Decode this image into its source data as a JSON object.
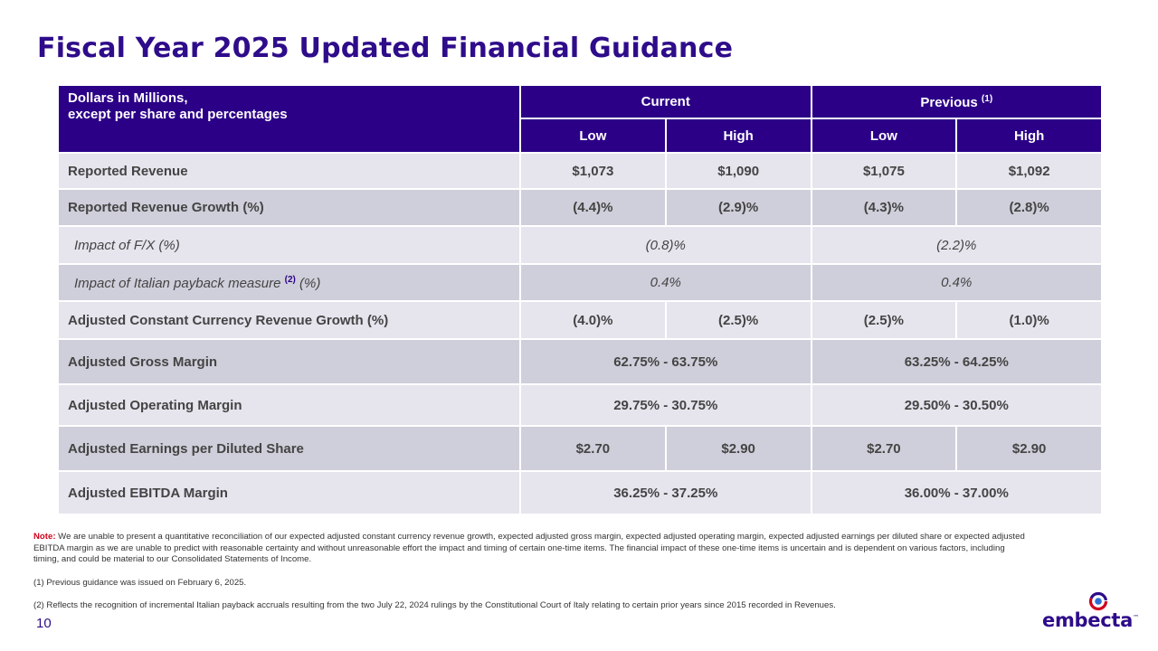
{
  "page": {
    "title": "Fiscal Year 2025 Updated Financial Guidance",
    "page_number": "10"
  },
  "table": {
    "corner_line1": "Dollars in Millions,",
    "corner_line2": "except per share and percentages",
    "group_current": "Current",
    "group_previous": "Previous",
    "group_previous_note": "(1)",
    "low": "Low",
    "high": "High",
    "rows": [
      {
        "label": "Reported Revenue",
        "cur_low": "$1,073",
        "cur_high": "$1,090",
        "prev_low": "$1,075",
        "prev_high": "$1,092"
      },
      {
        "label": "Reported Revenue Growth (%)",
        "cur_low": "(4.4)%",
        "cur_high": "(2.9)%",
        "prev_low": "(4.3)%",
        "prev_high": "(2.8)%"
      },
      {
        "label": "Impact of F/X (%)",
        "current": "(0.8)%",
        "previous": "(2.2)%"
      },
      {
        "label_before": "Impact of Italian payback measure ",
        "label_note": "(2)",
        "label_after": " (%)",
        "current": "0.4%",
        "previous": "0.4%"
      },
      {
        "label": "Adjusted Constant Currency Revenue Growth (%)",
        "cur_low": "(4.0)%",
        "cur_high": "(2.5)%",
        "prev_low": "(2.5)%",
        "prev_high": "(1.0)%"
      },
      {
        "label": "Adjusted Gross Margin",
        "current": "62.75% - 63.75%",
        "previous": "63.25% - 64.25%"
      },
      {
        "label": "Adjusted Operating Margin",
        "current": "29.75% - 30.75%",
        "previous": "29.50% - 30.50%"
      },
      {
        "label": "Adjusted Earnings per Diluted Share",
        "cur_low": "$2.70",
        "cur_high": "$2.90",
        "prev_low": "$2.70",
        "prev_high": "$2.90"
      },
      {
        "label": "Adjusted EBITDA Margin",
        "current": "36.25% - 37.25%",
        "previous": "36.00% - 37.00%"
      }
    ]
  },
  "notes": {
    "note_label": "Note:",
    "note_text": " We are unable to present a quantitative reconciliation of our expected adjusted constant currency revenue growth, expected adjusted gross margin, expected adjusted operating margin, expected adjusted earnings per diluted share or expected adjusted EBITDA margin as we are unable to predict with reasonable certainty and without unreasonable effort the impact and timing of certain one-time items. The financial impact of these one-time items is uncertain and is dependent on various factors, including timing, and could be material to our Consolidated Statements of Income.",
    "footnote1": "(1) Previous guidance was issued on February 6, 2025.",
    "footnote2": "(2) Reflects the recognition of incremental Italian payback accruals resulting from the two July 22, 2024 rulings by the Constitutional Court of Italy relating to certain prior years since 2015 recorded in Revenues."
  },
  "logo": {
    "text": "embecta",
    "tm": "™",
    "colors": {
      "purple": "#2e0c8a",
      "red": "#d0021b",
      "blue": "#2b6fd6"
    }
  },
  "colors": {
    "title": "#2e0c8a",
    "header_bg": "#2b0087",
    "row_light": "#e6e5ee",
    "row_dark": "#cfcfdb"
  }
}
